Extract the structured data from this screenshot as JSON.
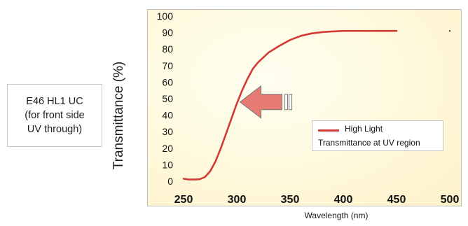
{
  "side_note": {
    "lines": [
      "E46 HL1 UC",
      "(for front side",
      "UV through)"
    ]
  },
  "chart_data": {
    "type": "line",
    "xlabel": "Wavelength (nm)",
    "ylabel": "Transmittance (%)",
    "xlim": [
      250,
      500
    ],
    "ylim": [
      0,
      100
    ],
    "xticks": [
      250,
      300,
      350,
      400,
      450,
      500
    ],
    "yticks": [
      0,
      10,
      20,
      30,
      40,
      50,
      60,
      70,
      80,
      90,
      100
    ],
    "grid": false,
    "legend_position": "right",
    "legend_subtitle": "Transmittance at UV region",
    "series": [
      {
        "name": "High Light",
        "color": "#d23b33",
        "x": [
          250,
          255,
          260,
          265,
          270,
          275,
          280,
          285,
          290,
          295,
          300,
          305,
          310,
          315,
          320,
          325,
          330,
          340,
          350,
          360,
          370,
          380,
          390,
          400,
          420,
          450
        ],
        "y": [
          1.5,
          1.0,
          1.0,
          1.2,
          2.5,
          6,
          12,
          20,
          29,
          38,
          47,
          55,
          62,
          68,
          72,
          75,
          78,
          82,
          85.5,
          88,
          89.5,
          90.3,
          90.7,
          91,
          91,
          91
        ]
      }
    ],
    "annotations": [
      {
        "type": "arrow",
        "direction": "left",
        "target_x": 303,
        "target_y": 48,
        "color": "#e57b72"
      }
    ],
    "markers": [
      {
        "x": 500,
        "y": 91
      }
    ]
  }
}
